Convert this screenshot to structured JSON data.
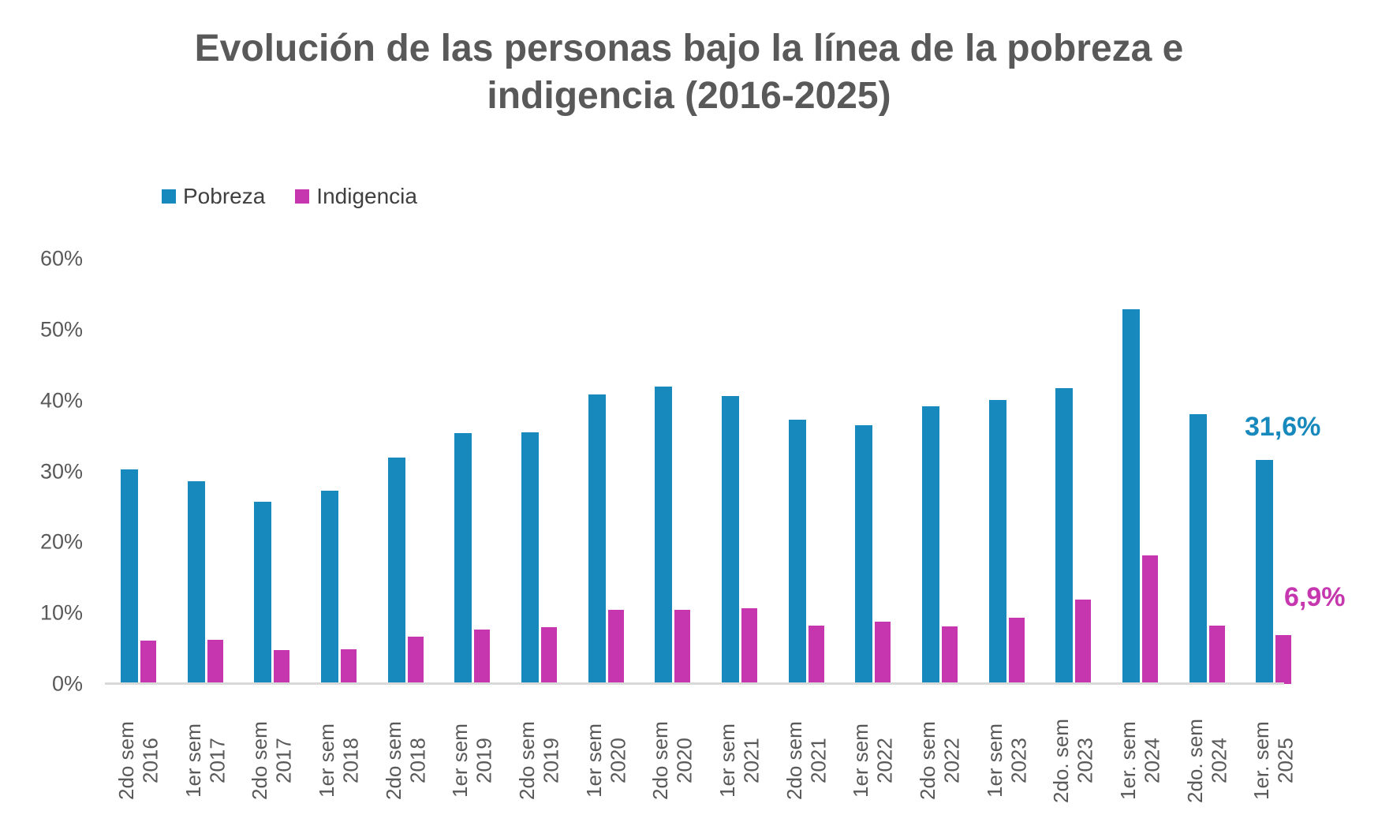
{
  "title": "Evolución de las personas bajo la línea de la pobreza e indigencia (2016-2025)",
  "legend": {
    "pobreza": "Pobreza",
    "indigencia": "Indigencia"
  },
  "colors": {
    "pobreza": "#1889BC",
    "indigencia": "#C637AF",
    "title_text": "#595959",
    "axis_text": "#595959",
    "baseline": "#D9D9D9"
  },
  "annotations": {
    "pobreza_last": "31,6%",
    "indigencia_last": "6,9%"
  },
  "chart_data": {
    "type": "bar",
    "title": "Evolución de las personas bajo la línea de la pobreza e indigencia (2016-2025)",
    "categories": [
      "2do sem 2016",
      "1er sem 2017",
      "2do sem 2017",
      "1er sem 2018",
      "2do sem 2018",
      "1er sem 2019",
      "2do sem 2019",
      "1er sem 2020",
      "2do sem 2020",
      "1er sem 2021",
      "2do sem 2021",
      "1er sem 2022",
      "2do sem 2022",
      "1er sem 2023",
      "2do. sem 2023",
      "1er. sem 2024",
      "2do. sem 2024",
      "1er. sem 2025"
    ],
    "categories_lines": [
      [
        "2do sem",
        "2016"
      ],
      [
        "1er sem",
        "2017"
      ],
      [
        "2do sem",
        "2017"
      ],
      [
        "1er sem",
        "2018"
      ],
      [
        "2do sem",
        "2018"
      ],
      [
        "1er sem",
        "2019"
      ],
      [
        "2do sem",
        "2019"
      ],
      [
        "1er sem",
        "2020"
      ],
      [
        "2do sem",
        "2020"
      ],
      [
        "1er sem",
        "2021"
      ],
      [
        "2do sem",
        "2021"
      ],
      [
        "1er sem",
        "2022"
      ],
      [
        "2do sem",
        "2022"
      ],
      [
        "1er sem",
        "2023"
      ],
      [
        "2do. sem",
        "2023"
      ],
      [
        "1er. sem",
        "2024"
      ],
      [
        "2do. sem",
        "2024"
      ],
      [
        "1er. sem",
        "2025"
      ]
    ],
    "series": [
      {
        "name": "Pobreza",
        "color": "#1889BC",
        "values": [
          30.3,
          28.6,
          25.7,
          27.3,
          32.0,
          35.4,
          35.5,
          40.9,
          42.0,
          40.6,
          37.3,
          36.5,
          39.2,
          40.1,
          41.7,
          52.9,
          38.1,
          31.6
        ]
      },
      {
        "name": "Indigencia",
        "color": "#C637AF",
        "values": [
          6.1,
          6.2,
          4.8,
          4.9,
          6.7,
          7.7,
          8.0,
          10.5,
          10.5,
          10.7,
          8.2,
          8.8,
          8.1,
          9.3,
          11.9,
          18.1,
          8.2,
          6.9
        ]
      }
    ],
    "xlabel": "",
    "ylabel": "",
    "ylim": [
      0,
      60
    ],
    "yticks": [
      {
        "value": 0,
        "label": "0%"
      },
      {
        "value": 10,
        "label": "10%"
      },
      {
        "value": 20,
        "label": "20%"
      },
      {
        "value": 30,
        "label": "30%"
      },
      {
        "value": 40,
        "label": "40%"
      },
      {
        "value": 50,
        "label": "50%"
      },
      {
        "value": 60,
        "label": "60%"
      }
    ],
    "grid": false,
    "legend_position": "top-left"
  }
}
